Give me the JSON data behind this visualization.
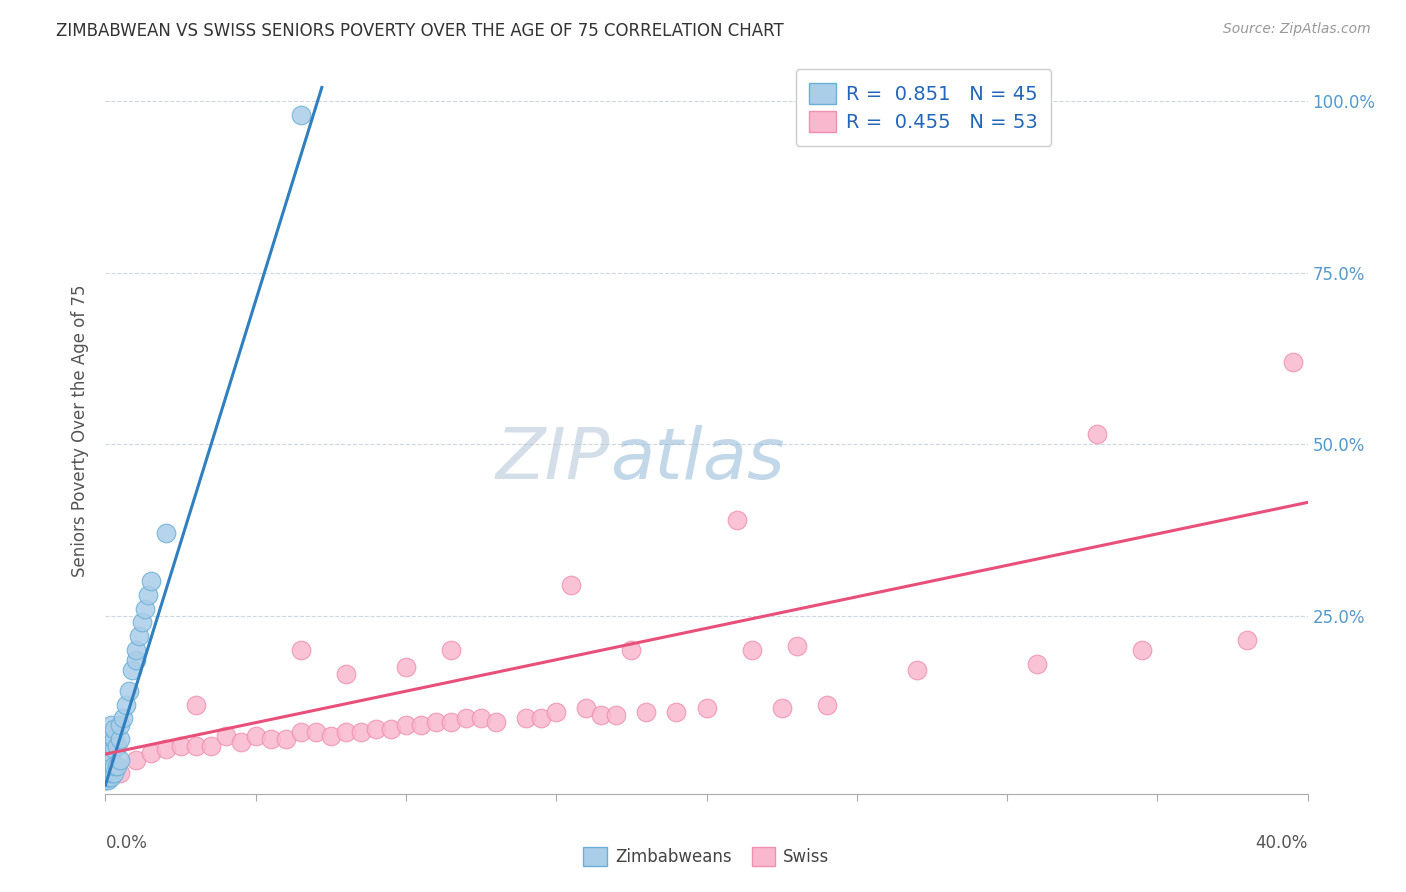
{
  "title": "ZIMBABWEAN VS SWISS SENIORS POVERTY OVER THE AGE OF 75 CORRELATION CHART",
  "source": "Source: ZipAtlas.com",
  "ylabel": "Seniors Poverty Over the Age of 75",
  "right_yticks": [
    "100.0%",
    "75.0%",
    "50.0%",
    "25.0%"
  ],
  "right_ytick_vals": [
    1.0,
    0.75,
    0.5,
    0.25
  ],
  "legend_blue_r": "R = 0.851",
  "legend_blue_n": "N = 45",
  "legend_pink_r": "R = 0.455",
  "legend_pink_n": "N = 53",
  "blue_color": "#aacde8",
  "blue_edge_color": "#6aafd6",
  "pink_color": "#f9b8ce",
  "pink_edge_color": "#f090b0",
  "blue_line_color": "#3080c0",
  "pink_line_color": "#e8507a",
  "background_color": "#ffffff",
  "xlim": [
    0.0,
    0.4
  ],
  "ylim": [
    -0.01,
    1.05
  ],
  "blue_scatter_x": [
    0.0,
    0.0,
    0.001,
    0.001,
    0.001,
    0.001,
    0.001,
    0.001,
    0.001,
    0.001,
    0.001,
    0.001,
    0.001,
    0.001,
    0.002,
    0.002,
    0.002,
    0.002,
    0.002,
    0.002,
    0.002,
    0.002,
    0.003,
    0.003,
    0.003,
    0.003,
    0.003,
    0.004,
    0.004,
    0.005,
    0.005,
    0.005,
    0.006,
    0.007,
    0.008,
    0.009,
    0.01,
    0.01,
    0.011,
    0.012,
    0.013,
    0.014,
    0.015,
    0.02,
    0.065
  ],
  "blue_scatter_y": [
    0.01,
    0.01,
    0.01,
    0.015,
    0.015,
    0.02,
    0.02,
    0.025,
    0.03,
    0.035,
    0.04,
    0.045,
    0.05,
    0.06,
    0.015,
    0.02,
    0.025,
    0.04,
    0.05,
    0.065,
    0.075,
    0.09,
    0.02,
    0.03,
    0.055,
    0.07,
    0.085,
    0.03,
    0.06,
    0.04,
    0.07,
    0.09,
    0.1,
    0.12,
    0.14,
    0.17,
    0.185,
    0.2,
    0.22,
    0.24,
    0.26,
    0.28,
    0.3,
    0.37,
    0.98
  ],
  "pink_scatter_x": [
    0.005,
    0.01,
    0.015,
    0.02,
    0.025,
    0.03,
    0.03,
    0.035,
    0.04,
    0.045,
    0.05,
    0.055,
    0.06,
    0.065,
    0.065,
    0.07,
    0.075,
    0.08,
    0.08,
    0.085,
    0.09,
    0.095,
    0.1,
    0.1,
    0.105,
    0.11,
    0.115,
    0.115,
    0.12,
    0.125,
    0.13,
    0.14,
    0.145,
    0.15,
    0.155,
    0.16,
    0.165,
    0.17,
    0.175,
    0.18,
    0.19,
    0.2,
    0.21,
    0.215,
    0.225,
    0.23,
    0.24,
    0.27,
    0.31,
    0.33,
    0.345,
    0.38,
    0.395
  ],
  "pink_scatter_y": [
    0.02,
    0.04,
    0.05,
    0.055,
    0.06,
    0.06,
    0.12,
    0.06,
    0.075,
    0.065,
    0.075,
    0.07,
    0.07,
    0.08,
    0.2,
    0.08,
    0.075,
    0.08,
    0.165,
    0.08,
    0.085,
    0.085,
    0.09,
    0.175,
    0.09,
    0.095,
    0.095,
    0.2,
    0.1,
    0.1,
    0.095,
    0.1,
    0.1,
    0.11,
    0.295,
    0.115,
    0.105,
    0.105,
    0.2,
    0.11,
    0.11,
    0.115,
    0.39,
    0.2,
    0.115,
    0.205,
    0.12,
    0.17,
    0.18,
    0.515,
    0.2,
    0.215,
    0.62
  ],
  "blue_line_x": [
    0.0,
    0.072
  ],
  "blue_line_y": [
    0.003,
    1.02
  ],
  "pink_line_x": [
    0.0,
    0.4
  ],
  "pink_line_y": [
    0.048,
    0.415
  ]
}
